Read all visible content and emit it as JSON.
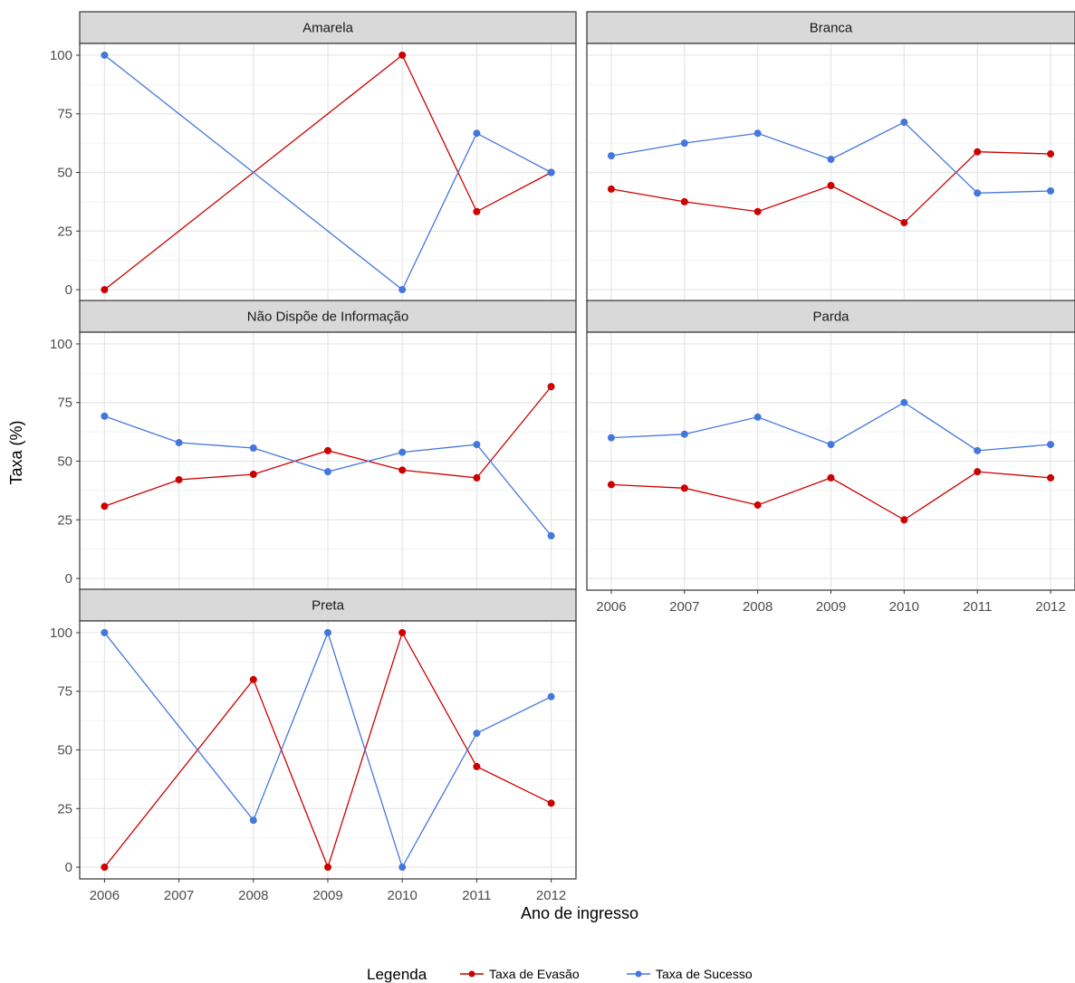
{
  "chart_data": {
    "type": "line",
    "facet_layout": "wrap, 2 columns",
    "xlabel": "Ano de ingresso",
    "ylabel": "Taxa (%)",
    "x": [
      "2006",
      "2007",
      "2008",
      "2009",
      "2010",
      "2011",
      "2012"
    ],
    "ylim": [
      0,
      100
    ],
    "y_ticks": [
      "0",
      "25",
      "50",
      "75",
      "100"
    ],
    "grid": true,
    "legend": {
      "title": "Legenda",
      "position": "bottom",
      "entries": [
        "Taxa de Evasão",
        "Taxa de Sucesso"
      ]
    },
    "series_colors": {
      "Taxa de Evasão": "#cc0000",
      "Taxa de Sucesso": "#4477dd"
    },
    "panels": [
      {
        "title": "Amarela",
        "series": [
          {
            "name": "Taxa de Evasão",
            "x": [
              "2006",
              "2010",
              "2011",
              "2012"
            ],
            "values": [
              0,
              100,
              33.3,
              50
            ]
          },
          {
            "name": "Taxa de Sucesso",
            "x": [
              "2006",
              "2010",
              "2011",
              "2012"
            ],
            "values": [
              100,
              0,
              66.7,
              50
            ]
          }
        ]
      },
      {
        "title": "Branca",
        "series": [
          {
            "name": "Taxa de Evasão",
            "x": [
              "2006",
              "2007",
              "2008",
              "2009",
              "2010",
              "2011",
              "2012"
            ],
            "values": [
              42.9,
              37.5,
              33.3,
              44.4,
              28.6,
              58.8,
              57.9
            ]
          },
          {
            "name": "Taxa de Sucesso",
            "x": [
              "2006",
              "2007",
              "2008",
              "2009",
              "2010",
              "2011",
              "2012"
            ],
            "values": [
              57.1,
              62.5,
              66.7,
              55.6,
              71.4,
              41.2,
              42.1
            ]
          }
        ]
      },
      {
        "title": "Não Dispõe de Informação",
        "series": [
          {
            "name": "Taxa de Evasão",
            "x": [
              "2006",
              "2007",
              "2008",
              "2009",
              "2010",
              "2011",
              "2012"
            ],
            "values": [
              30.8,
              42.1,
              44.4,
              54.5,
              46.2,
              42.9,
              81.8
            ]
          },
          {
            "name": "Taxa de Sucesso",
            "x": [
              "2006",
              "2007",
              "2008",
              "2009",
              "2010",
              "2011",
              "2012"
            ],
            "values": [
              69.2,
              57.9,
              55.6,
              45.5,
              53.8,
              57.1,
              18.2
            ]
          }
        ]
      },
      {
        "title": "Parda",
        "series": [
          {
            "name": "Taxa de Evasão",
            "x": [
              "2006",
              "2007",
              "2008",
              "2009",
              "2010",
              "2011",
              "2012"
            ],
            "values": [
              40.0,
              38.5,
              31.3,
              42.9,
              25.0,
              45.5,
              42.9
            ]
          },
          {
            "name": "Taxa de Sucesso",
            "x": [
              "2006",
              "2007",
              "2008",
              "2009",
              "2010",
              "2011",
              "2012"
            ],
            "values": [
              60.0,
              61.5,
              68.8,
              57.1,
              75.0,
              54.5,
              57.1
            ]
          }
        ]
      },
      {
        "title": "Preta",
        "series": [
          {
            "name": "Taxa de Evasão",
            "x": [
              "2006",
              "2008",
              "2009",
              "2010",
              "2011",
              "2012"
            ],
            "values": [
              0,
              80,
              0,
              100,
              42.9,
              27.3
            ]
          },
          {
            "name": "Taxa de Sucesso",
            "x": [
              "2006",
              "2008",
              "2009",
              "2010",
              "2011",
              "2012"
            ],
            "values": [
              100,
              20,
              100,
              0,
              57.1,
              72.7
            ]
          }
        ]
      }
    ]
  }
}
